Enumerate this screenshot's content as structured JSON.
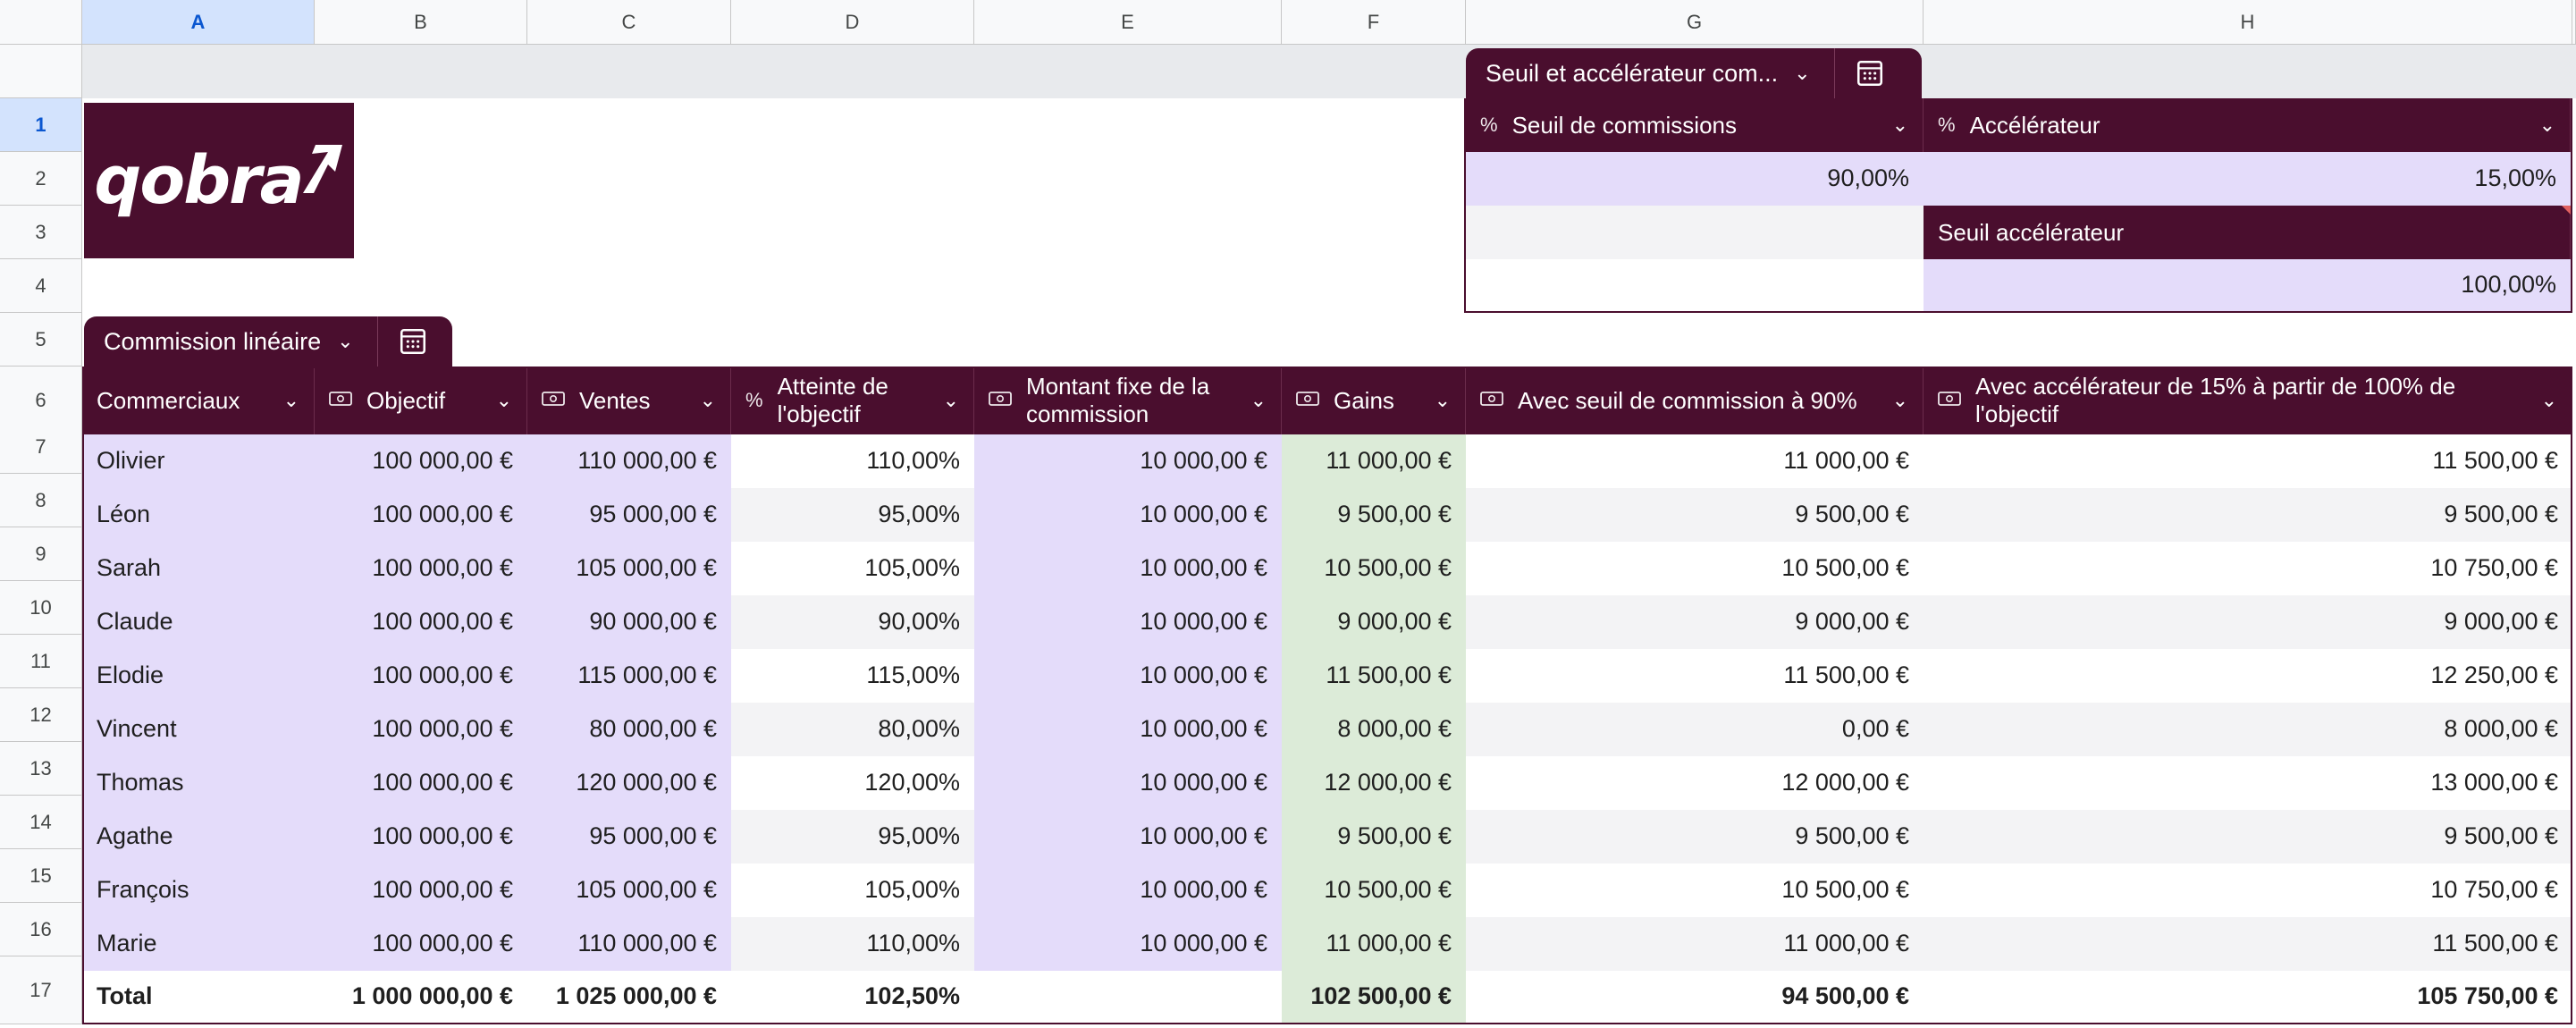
{
  "columns": [
    "A",
    "B",
    "C",
    "D",
    "E",
    "F",
    "G",
    "H"
  ],
  "rows": [
    "1",
    "2",
    "3",
    "4",
    "5",
    "6",
    "7",
    "8",
    "9",
    "10",
    "11",
    "12",
    "13",
    "14",
    "15",
    "16",
    "17"
  ],
  "logo_text": "qobra",
  "settings": {
    "tab_title": "Seuil et accélérateur com...",
    "headers": [
      {
        "icon": "%",
        "label": "Seuil de commissions"
      },
      {
        "icon": "%",
        "label": "Accélérateur"
      }
    ],
    "threshold_value": "90,00%",
    "accelerator_value": "15,00%",
    "accelerator_threshold_label": "Seuil accélérateur",
    "accelerator_threshold_value": "100,00%"
  },
  "table": {
    "tab_title": "Commission linéaire",
    "headers": [
      {
        "icon": "",
        "label": "Commerciaux"
      },
      {
        "icon": "money",
        "label": "Objectif"
      },
      {
        "icon": "money",
        "label": "Ventes"
      },
      {
        "icon": "%",
        "label": "Atteinte de l'objectif"
      },
      {
        "icon": "money",
        "label": "Montant fixe de la commission"
      },
      {
        "icon": "money",
        "label": "Gains"
      },
      {
        "icon": "money",
        "label": "Avec seuil de commission à 90%"
      },
      {
        "icon": "money",
        "label": "Avec accélérateur de 15% à partir de 100% de l'objectif"
      }
    ],
    "rows": [
      [
        "Olivier",
        "100 000,00 €",
        "110 000,00 €",
        "110,00%",
        "10 000,00 €",
        "11 000,00 €",
        "11 000,00 €",
        "11 500,00 €"
      ],
      [
        "Léon",
        "100 000,00 €",
        "95 000,00 €",
        "95,00%",
        "10 000,00 €",
        "9 500,00 €",
        "9 500,00 €",
        "9 500,00 €"
      ],
      [
        "Sarah",
        "100 000,00 €",
        "105 000,00 €",
        "105,00%",
        "10 000,00 €",
        "10 500,00 €",
        "10 500,00 €",
        "10 750,00 €"
      ],
      [
        "Claude",
        "100 000,00 €",
        "90 000,00 €",
        "90,00%",
        "10 000,00 €",
        "9 000,00 €",
        "9 000,00 €",
        "9 000,00 €"
      ],
      [
        "Elodie",
        "100 000,00 €",
        "115 000,00 €",
        "115,00%",
        "10 000,00 €",
        "11 500,00 €",
        "11 500,00 €",
        "12 250,00 €"
      ],
      [
        "Vincent",
        "100 000,00 €",
        "80 000,00 €",
        "80,00%",
        "10 000,00 €",
        "8 000,00 €",
        "0,00 €",
        "8 000,00 €"
      ],
      [
        "Thomas",
        "100 000,00 €",
        "120 000,00 €",
        "120,00%",
        "10 000,00 €",
        "12 000,00 €",
        "12 000,00 €",
        "13 000,00 €"
      ],
      [
        "Agathe",
        "100 000,00 €",
        "95 000,00 €",
        "95,00%",
        "10 000,00 €",
        "9 500,00 €",
        "9 500,00 €",
        "9 500,00 €"
      ],
      [
        "François",
        "100 000,00 €",
        "105 000,00 €",
        "105,00%",
        "10 000,00 €",
        "10 500,00 €",
        "10 500,00 €",
        "10 750,00 €"
      ],
      [
        "Marie",
        "100 000,00 €",
        "110 000,00 €",
        "110,00%",
        "10 000,00 €",
        "11 000,00 €",
        "11 000,00 €",
        "11 500,00 €"
      ]
    ],
    "total": [
      "Total",
      "1 000 000,00 €",
      "1 025 000,00 €",
      "102,50%",
      "",
      "102 500,00 €",
      "94 500,00 €",
      "105 750,00 €"
    ]
  },
  "colors": {
    "header_bg": "#4a0e2e",
    "input_purple": "#e4dcfa",
    "output_green": "#dcebd8",
    "selection_blue": "#d3e3fd"
  }
}
